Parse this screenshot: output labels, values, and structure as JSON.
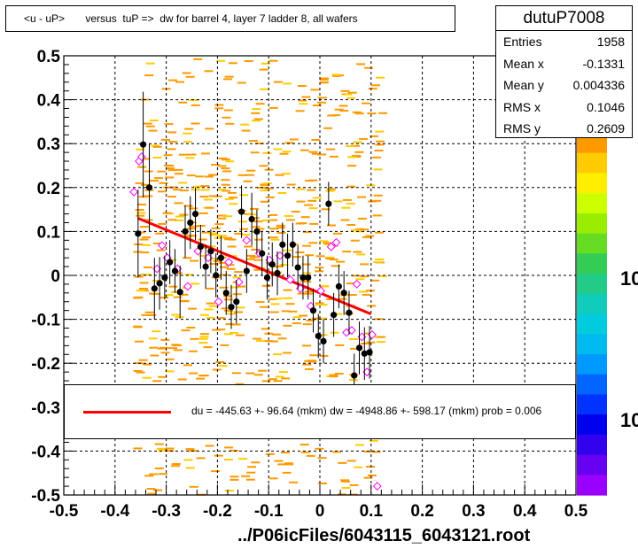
{
  "title": "<u - uP>       versus  tuP =>  dw for barrel 4, layer 7 ladder 8, all wafers",
  "footer": "../P06icFiles/6043115_6043121.root",
  "stats": {
    "name": "dutuP7008",
    "rows": [
      {
        "key": "Entries",
        "value": "1958"
      },
      {
        "key": "Mean x",
        "value": "-0.1331"
      },
      {
        "key": "Mean y",
        "value": "0.004336"
      },
      {
        "key": "RMS x",
        "value": "0.1046"
      },
      {
        "key": "RMS y",
        "value": "0.2609"
      }
    ]
  },
  "fit": {
    "text": "du = -445.63 +- 96.64 (mkm) dw = -4948.86 +- 598.17 (mkm) prob = 0.006",
    "color": "#ff0000"
  },
  "palette_labels": [
    "10",
    "10"
  ],
  "colors": {
    "profile": "#000000",
    "profile_alt": "#ff00ff",
    "histogram": "#ff9900",
    "fit": "#ff0000"
  },
  "chart_data": {
    "type": "scatter",
    "title": "<u - uP>       versus  tuP =>  dw for barrel 4, layer 7 ladder 8, all wafers",
    "xlabel": "",
    "ylabel": "",
    "xlim": [
      -0.5,
      0.5
    ],
    "ylim": [
      -0.5,
      0.5
    ],
    "x_ticks": [
      "-0.5",
      "-0.4",
      "-0.3",
      "-0.2",
      "-0.1",
      "0",
      "0.1",
      "0.2",
      "0.3",
      "0.4",
      "0.5"
    ],
    "y_ticks": [
      "-0.5",
      "-0.4",
      "-0.3",
      "-0.2",
      "-0.1",
      "0",
      "0.1",
      "0.2",
      "0.3",
      "0.4",
      "0.5"
    ],
    "grid": true,
    "fit_line": {
      "x": [
        -0.355,
        0.1
      ],
      "y": [
        0.13,
        -0.088
      ]
    },
    "series": [
      {
        "points": [
          {
            "x": -0.355,
            "y": 0.095,
            "err": 0.1
          },
          {
            "x": -0.345,
            "y": 0.298,
            "err": 0.12
          },
          {
            "x": -0.333,
            "y": 0.2,
            "err": 0.1
          },
          {
            "x": -0.323,
            "y": -0.03,
            "err": 0.07
          },
          {
            "x": -0.313,
            "y": -0.018,
            "err": 0.06
          },
          {
            "x": -0.303,
            "y": -0.005,
            "err": 0.05
          },
          {
            "x": -0.293,
            "y": 0.03,
            "err": 0.05
          },
          {
            "x": -0.283,
            "y": 0.01,
            "err": 0.05
          },
          {
            "x": -0.273,
            "y": -0.038,
            "err": 0.06
          },
          {
            "x": -0.263,
            "y": 0.1,
            "err": 0.06
          },
          {
            "x": -0.253,
            "y": 0.12,
            "err": 0.06
          },
          {
            "x": -0.243,
            "y": 0.14,
            "err": 0.06
          },
          {
            "x": -0.233,
            "y": 0.065,
            "err": 0.05
          },
          {
            "x": -0.223,
            "y": 0.02,
            "err": 0.05
          },
          {
            "x": -0.213,
            "y": 0.055,
            "err": 0.05
          },
          {
            "x": -0.203,
            "y": 0.0,
            "err": 0.05
          },
          {
            "x": -0.193,
            "y": 0.04,
            "err": 0.05
          },
          {
            "x": -0.183,
            "y": -0.04,
            "err": 0.05
          },
          {
            "x": -0.173,
            "y": -0.072,
            "err": 0.05
          },
          {
            "x": -0.163,
            "y": -0.06,
            "err": 0.05
          },
          {
            "x": -0.153,
            "y": 0.145,
            "err": 0.06
          },
          {
            "x": -0.143,
            "y": 0.01,
            "err": 0.05
          },
          {
            "x": -0.133,
            "y": 0.128,
            "err": 0.06
          },
          {
            "x": -0.123,
            "y": 0.1,
            "err": 0.05
          },
          {
            "x": -0.113,
            "y": 0.05,
            "err": 0.05
          },
          {
            "x": -0.103,
            "y": -0.005,
            "err": 0.05
          },
          {
            "x": -0.093,
            "y": 0.025,
            "err": 0.05
          },
          {
            "x": -0.083,
            "y": 0.005,
            "err": 0.05
          },
          {
            "x": -0.073,
            "y": 0.07,
            "err": 0.05
          },
          {
            "x": -0.063,
            "y": 0.045,
            "err": 0.05
          },
          {
            "x": -0.053,
            "y": 0.07,
            "err": 0.05
          },
          {
            "x": -0.043,
            "y": 0.018,
            "err": 0.05
          },
          {
            "x": -0.033,
            "y": -0.005,
            "err": 0.05
          },
          {
            "x": -0.023,
            "y": -0.005,
            "err": 0.05
          },
          {
            "x": -0.013,
            "y": -0.08,
            "err": 0.05
          },
          {
            "x": -0.003,
            "y": -0.138,
            "err": 0.05
          },
          {
            "x": 0.007,
            "y": -0.15,
            "err": 0.05
          },
          {
            "x": 0.017,
            "y": 0.163,
            "err": 0.05
          },
          {
            "x": 0.027,
            "y": -0.09,
            "err": 0.05
          },
          {
            "x": 0.037,
            "y": -0.025,
            "err": 0.05
          },
          {
            "x": 0.047,
            "y": -0.04,
            "err": 0.05
          },
          {
            "x": 0.057,
            "y": -0.085,
            "err": 0.05
          },
          {
            "x": 0.067,
            "y": -0.228,
            "err": 0.05
          },
          {
            "x": 0.077,
            "y": -0.165,
            "err": 0.06
          },
          {
            "x": 0.087,
            "y": -0.178,
            "err": 0.06
          },
          {
            "x": 0.097,
            "y": -0.175,
            "err": 0.06
          }
        ]
      },
      {
        "points": [
          {
            "x": -0.363,
            "y": 0.19
          },
          {
            "x": -0.353,
            "y": 0.26
          },
          {
            "x": -0.348,
            "y": 0.27
          },
          {
            "x": -0.318,
            "y": 0.015
          },
          {
            "x": -0.308,
            "y": 0.068
          },
          {
            "x": -0.298,
            "y": 0.04
          },
          {
            "x": -0.278,
            "y": 0.015
          },
          {
            "x": -0.258,
            "y": -0.025
          },
          {
            "x": -0.238,
            "y": 0.055
          },
          {
            "x": -0.218,
            "y": 0.04
          },
          {
            "x": -0.198,
            "y": -0.06
          },
          {
            "x": -0.178,
            "y": 0.03
          },
          {
            "x": -0.158,
            "y": -0.015
          },
          {
            "x": -0.143,
            "y": 0.08
          },
          {
            "x": -0.118,
            "y": 0.05
          },
          {
            "x": -0.098,
            "y": 0.035
          },
          {
            "x": -0.078,
            "y": 0.045
          },
          {
            "x": -0.058,
            "y": -0.01
          },
          {
            "x": -0.038,
            "y": -0.03
          },
          {
            "x": -0.018,
            "y": -0.07
          },
          {
            "x": 0.002,
            "y": -0.035
          },
          {
            "x": 0.022,
            "y": 0.065
          },
          {
            "x": 0.032,
            "y": 0.075
          },
          {
            "x": 0.052,
            "y": -0.13
          },
          {
            "x": 0.062,
            "y": -0.125
          },
          {
            "x": 0.072,
            "y": -0.02
          },
          {
            "x": 0.082,
            "y": -0.14
          },
          {
            "x": 0.092,
            "y": -0.22
          },
          {
            "x": 0.102,
            "y": -0.135
          },
          {
            "x": 0.112,
            "y": -0.48
          }
        ]
      }
    ],
    "histogram_color": "#ff9900"
  }
}
